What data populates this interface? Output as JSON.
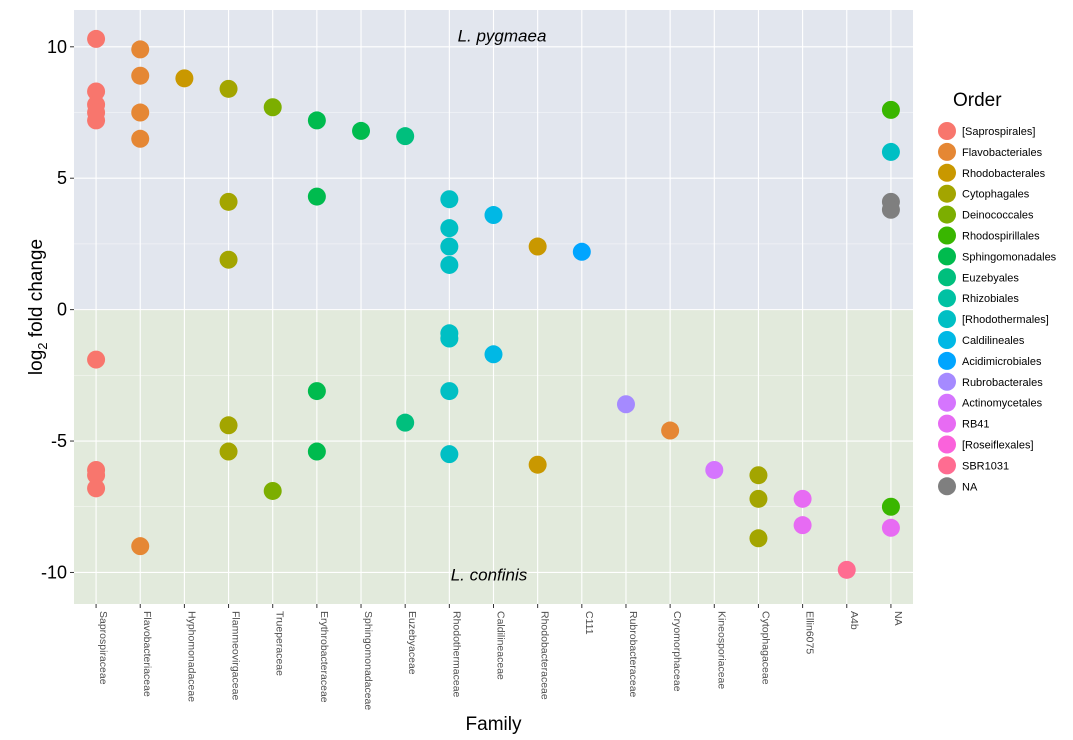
{
  "chart_data": {
    "type": "scatter",
    "xlabel": "Family",
    "ylabel": "log2 fold change",
    "ylim": [
      -11.2,
      11.4
    ],
    "yticks": [
      10,
      5,
      0,
      -5,
      -10
    ],
    "ytick_labels": [
      "10",
      "5",
      "0",
      "-5",
      "-10"
    ],
    "grid": true,
    "legend_position": "right",
    "legend_title": "Order",
    "panel_labels": {
      "top": "L. pygmaea",
      "bottom": "L. confinis"
    },
    "panel_colors": {
      "top": "#e2e6ee",
      "bottom": "#e2eadc"
    },
    "categories": [
      "Saprospiraceae",
      "Flavobacteriaceae",
      "Hyphomonadaceae",
      "Flammeovirgaceae",
      "Trueperaceae",
      "Erythrobacteraceae",
      "Sphingomonadaceae",
      "Euzebyaceae",
      "Rhodothermaceae",
      "Caldilineaceae",
      "Rhodobacteraceae",
      "C111",
      "Rubrobacteraceae",
      "Cryomorphaceae",
      "Kineosporiaceae",
      "Cytophagaceae",
      "Ellin6075",
      "A4b",
      "NA"
    ],
    "series": [
      {
        "name": "[Saprospirales]",
        "color": "#F8766D",
        "points": [
          {
            "x": "Saprospiraceae",
            "y": 10.3
          },
          {
            "x": "Saprospiraceae",
            "y": 8.3
          },
          {
            "x": "Saprospiraceae",
            "y": 7.8
          },
          {
            "x": "Saprospiraceae",
            "y": 7.5
          },
          {
            "x": "Saprospiraceae",
            "y": 7.2
          },
          {
            "x": "Saprospiraceae",
            "y": -1.9
          },
          {
            "x": "Saprospiraceae",
            "y": -6.1
          },
          {
            "x": "Saprospiraceae",
            "y": -6.3
          },
          {
            "x": "Saprospiraceae",
            "y": -6.8
          }
        ]
      },
      {
        "name": "Flavobacteriales",
        "color": "#E58734",
        "points": [
          {
            "x": "Flavobacteriaceae",
            "y": 9.9
          },
          {
            "x": "Flavobacteriaceae",
            "y": 8.9
          },
          {
            "x": "Flavobacteriaceae",
            "y": 7.5
          },
          {
            "x": "Flavobacteriaceae",
            "y": 6.5
          },
          {
            "x": "Flavobacteriaceae",
            "y": -9.0
          },
          {
            "x": "Cryomorphaceae",
            "y": -4.6
          }
        ]
      },
      {
        "name": "Rhodobacterales",
        "color": "#C99800",
        "points": [
          {
            "x": "Hyphomonadaceae",
            "y": 8.8
          },
          {
            "x": "Rhodobacteraceae",
            "y": 2.4
          },
          {
            "x": "Rhodobacteraceae",
            "y": -5.9
          }
        ]
      },
      {
        "name": "Cytophagales",
        "color": "#A3A500",
        "points": [
          {
            "x": "Flammeovirgaceae",
            "y": 8.4
          },
          {
            "x": "Flammeovirgaceae",
            "y": 4.1
          },
          {
            "x": "Flammeovirgaceae",
            "y": 1.9
          },
          {
            "x": "Flammeovirgaceae",
            "y": -4.4
          },
          {
            "x": "Flammeovirgaceae",
            "y": -5.4
          },
          {
            "x": "Cytophagaceae",
            "y": -6.3
          },
          {
            "x": "Cytophagaceae",
            "y": -7.2
          },
          {
            "x": "Cytophagaceae",
            "y": -8.7
          }
        ]
      },
      {
        "name": "Deinococcales",
        "color": "#7CAE00",
        "points": [
          {
            "x": "Trueperaceae",
            "y": 7.7
          },
          {
            "x": "Trueperaceae",
            "y": -6.9
          }
        ]
      },
      {
        "name": "Rhodospirillales",
        "color": "#39B600",
        "points": [
          {
            "x": "NA",
            "y": 7.6
          },
          {
            "x": "NA",
            "y": -7.5
          }
        ]
      },
      {
        "name": "Sphingomonadales",
        "color": "#00BB4E",
        "points": [
          {
            "x": "Erythrobacteraceae",
            "y": 7.2
          },
          {
            "x": "Erythrobacteraceae",
            "y": 4.3
          },
          {
            "x": "Erythrobacteraceae",
            "y": -3.1
          },
          {
            "x": "Erythrobacteraceae",
            "y": -5.4
          },
          {
            "x": "Sphingomonadaceae",
            "y": 6.8
          }
        ]
      },
      {
        "name": "Euzebyales",
        "color": "#00BF7D",
        "points": [
          {
            "x": "Euzebyaceae",
            "y": 6.6
          },
          {
            "x": "Euzebyaceae",
            "y": -4.3
          }
        ]
      },
      {
        "name": "Rhizobiales",
        "color": "#00C1A3",
        "points": []
      },
      {
        "name": "[Rhodothermales]",
        "color": "#00BFC4",
        "points": [
          {
            "x": "Rhodothermaceae",
            "y": 4.2
          },
          {
            "x": "Rhodothermaceae",
            "y": 3.1
          },
          {
            "x": "Rhodothermaceae",
            "y": 2.4
          },
          {
            "x": "Rhodothermaceae",
            "y": 1.7
          },
          {
            "x": "Rhodothermaceae",
            "y": -0.9
          },
          {
            "x": "Rhodothermaceae",
            "y": -1.1
          },
          {
            "x": "Rhodothermaceae",
            "y": -3.1
          },
          {
            "x": "Rhodothermaceae",
            "y": -5.5
          },
          {
            "x": "NA",
            "y": 6.0
          }
        ]
      },
      {
        "name": "Caldilineales",
        "color": "#00B8E5",
        "points": [
          {
            "x": "Caldilineaceae",
            "y": 3.6
          },
          {
            "x": "Caldilineaceae",
            "y": -1.7
          }
        ]
      },
      {
        "name": "Acidimicrobiales",
        "color": "#00A5FF",
        "points": [
          {
            "x": "C111",
            "y": 2.2
          }
        ]
      },
      {
        "name": "Rubrobacterales",
        "color": "#A58AFF",
        "points": [
          {
            "x": "Rubrobacteraceae",
            "y": -3.6
          }
        ]
      },
      {
        "name": "Actinomycetales",
        "color": "#D575FE",
        "points": [
          {
            "x": "Kineosporiaceae",
            "y": -6.1
          }
        ]
      },
      {
        "name": "RB41",
        "color": "#E76BF3",
        "points": [
          {
            "x": "Ellin6075",
            "y": -7.2
          },
          {
            "x": "Ellin6075",
            "y": -8.2
          },
          {
            "x": "NA",
            "y": -8.3
          }
        ]
      },
      {
        "name": "[Roseiflexales]",
        "color": "#FA62DB",
        "points": []
      },
      {
        "name": "SBR1031",
        "color": "#FF6C91",
        "points": [
          {
            "x": "A4b",
            "y": -9.9
          }
        ]
      },
      {
        "name": "NA",
        "color": "#7F7F7F",
        "points": [
          {
            "x": "NA",
            "y": 4.1
          },
          {
            "x": "NA",
            "y": 3.8
          }
        ]
      }
    ]
  }
}
